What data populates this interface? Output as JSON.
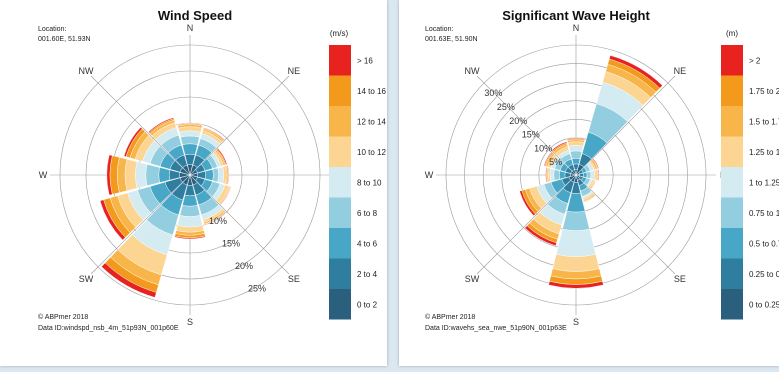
{
  "palette": [
    "#2a5f7e",
    "#2f7ea0",
    "#48a7c6",
    "#93cee0",
    "#d4ebf2",
    "#fcd592",
    "#f7b54a",
    "#f39a1c",
    "#e8231f"
  ],
  "directions": [
    "N",
    "NE",
    "E",
    "SE",
    "S",
    "SW",
    "W",
    "NW"
  ],
  "panels": [
    {
      "title": "Wind Speed",
      "location_label": "Location:",
      "location": "001.60E, 51.93N",
      "copyright": "© ABPmer 2018",
      "data_id": "Data ID:windspd_nsb_4m_51p93N_001p60E",
      "units": "(m/s)",
      "legend": [
        "0 to 2",
        "2 to 4",
        "4 to 6",
        "6 to 8",
        "8 to 10",
        "10 to 12",
        "12 to 14",
        "14 to 16",
        "> 16"
      ],
      "ring_labels": [
        "10%",
        "15%",
        "20%",
        "25%"
      ],
      "ring_values": [
        5,
        10,
        15,
        20,
        25
      ],
      "ring_label_side": "SE",
      "chart_data": {
        "type": "polar-bar",
        "title": "Wind Speed",
        "units": "m/s",
        "sectors_deg": [
          0,
          30,
          60,
          90,
          120,
          150,
          180,
          210,
          240,
          270,
          300,
          330
        ],
        "sectors": [
          {
            "dir": 0,
            "cum": [
              2,
              4,
              6,
              7.5,
              8.5,
              9.3,
              9.7,
              9.9,
              10
            ]
          },
          {
            "dir": 30,
            "cum": [
              2,
              4,
              6,
              7.3,
              8.3,
              8.9,
              9.2,
              9.4,
              9.5
            ]
          },
          {
            "dir": 60,
            "cum": [
              1.5,
              3,
              4.5,
              5.5,
              6.2,
              6.7,
              7,
              7.2,
              7.4
            ]
          },
          {
            "dir": 90,
            "cum": [
              1.5,
              3,
              4.5,
              5.5,
              6.5,
              7,
              7.2,
              7.4,
              7.5
            ]
          },
          {
            "dir": 120,
            "cum": [
              1.5,
              3,
              4.5,
              6,
              7,
              7.8,
              8,
              8.1,
              8.2
            ]
          },
          {
            "dir": 150,
            "cum": [
              2,
              4,
              6,
              8,
              9,
              9.5,
              9.8,
              9.9,
              10
            ]
          },
          {
            "dir": 180,
            "cum": [
              2,
              4,
              6,
              8,
              10,
              11,
              11.6,
              12.1,
              12.3
            ]
          },
          {
            "dir": 210,
            "cum": [
              2,
              5,
              8,
              12,
              16,
              20,
              22,
              23.5,
              24.5
            ]
          },
          {
            "dir": 240,
            "cum": [
              2,
              5,
              8,
              10.5,
              12.5,
              14.5,
              16,
              17.3,
              18
            ]
          },
          {
            "dir": 270,
            "cum": [
              2,
              4,
              6,
              8.5,
              10.5,
              12.5,
              14,
              15.4,
              16
            ]
          },
          {
            "dir": 300,
            "cum": [
              2,
              4,
              6,
              8,
              9.5,
              11,
              12,
              12.8,
              13.2
            ]
          },
          {
            "dir": 330,
            "cum": [
              2,
              4,
              6,
              8,
              9.5,
              10.5,
              11,
              11.3,
              11.5
            ]
          }
        ]
      }
    },
    {
      "title": "Significant Wave Height",
      "location_label": "Location:",
      "location": "001.63E, 51.90N",
      "copyright": "© ABPmer 2018",
      "data_id": "Data ID:wavehs_sea_nwe_51p90N_001p63E",
      "units": "(m)",
      "legend": [
        "0 to 0.25",
        "0.25 to 0.5",
        "0.5 to 0.75",
        "0.75 to 1",
        "1 to 1.25",
        "1.25 to 1.5",
        "1.5 to 1.75",
        "1.75 to 2",
        "> 2"
      ],
      "ring_labels": [
        "5%",
        "10%",
        "15%",
        "20%",
        "25%",
        "30%"
      ],
      "ring_values": [
        5,
        10,
        15,
        20,
        25,
        30,
        35
      ],
      "ring_label_side": "NW",
      "chart_data": {
        "type": "polar-bar",
        "title": "Significant Wave Height",
        "units": "m",
        "sectors_deg": [
          0,
          30,
          60,
          90,
          120,
          150,
          180,
          210,
          240,
          270,
          300,
          330
        ],
        "sectors": [
          {
            "dir": 0,
            "cum": [
              1.5,
              3,
              4.5,
              6.5,
              8,
              9,
              9.5,
              9.8,
              10
            ]
          },
          {
            "dir": 30,
            "cum": [
              3,
              6,
              12,
              20,
              26,
              29,
              31,
              32.5,
              33.5
            ]
          },
          {
            "dir": 60,
            "cum": [
              1,
              2,
              3,
              4,
              5,
              5.5,
              6,
              6.2,
              6.4
            ]
          },
          {
            "dir": 90,
            "cum": [
              1,
              2,
              3,
              4,
              5,
              5.5,
              5.8,
              6,
              6.2
            ]
          },
          {
            "dir": 120,
            "cum": [
              1,
              2,
              3,
              4,
              4.5,
              5,
              5.2,
              5.4,
              5.5
            ]
          },
          {
            "dir": 150,
            "cum": [
              1.5,
              3,
              4.5,
              6,
              6.5,
              7,
              7.3,
              7.5,
              7.6
            ]
          },
          {
            "dir": 180,
            "cum": [
              2,
              5,
              10,
              15,
              22,
              26,
              28,
              29.5,
              30.5
            ]
          },
          {
            "dir": 210,
            "cum": [
              2,
              5,
              8,
              11,
              14,
              16.5,
              18,
              19,
              19.8
            ]
          },
          {
            "dir": 240,
            "cum": [
              2,
              4,
              7,
              9,
              11,
              13,
              14.2,
              15.2,
              15.8
            ]
          },
          {
            "dir": 270,
            "cum": [
              1.5,
              3,
              4.5,
              6,
              7,
              7.5,
              7.8,
              8,
              8.2
            ]
          },
          {
            "dir": 300,
            "cum": [
              1.5,
              3,
              4.5,
              6,
              7,
              8,
              8.5,
              8.8,
              9
            ]
          },
          {
            "dir": 330,
            "cum": [
              1.5,
              3,
              4.5,
              6,
              7,
              8,
              8.6,
              9,
              9.3
            ]
          }
        ]
      }
    }
  ]
}
